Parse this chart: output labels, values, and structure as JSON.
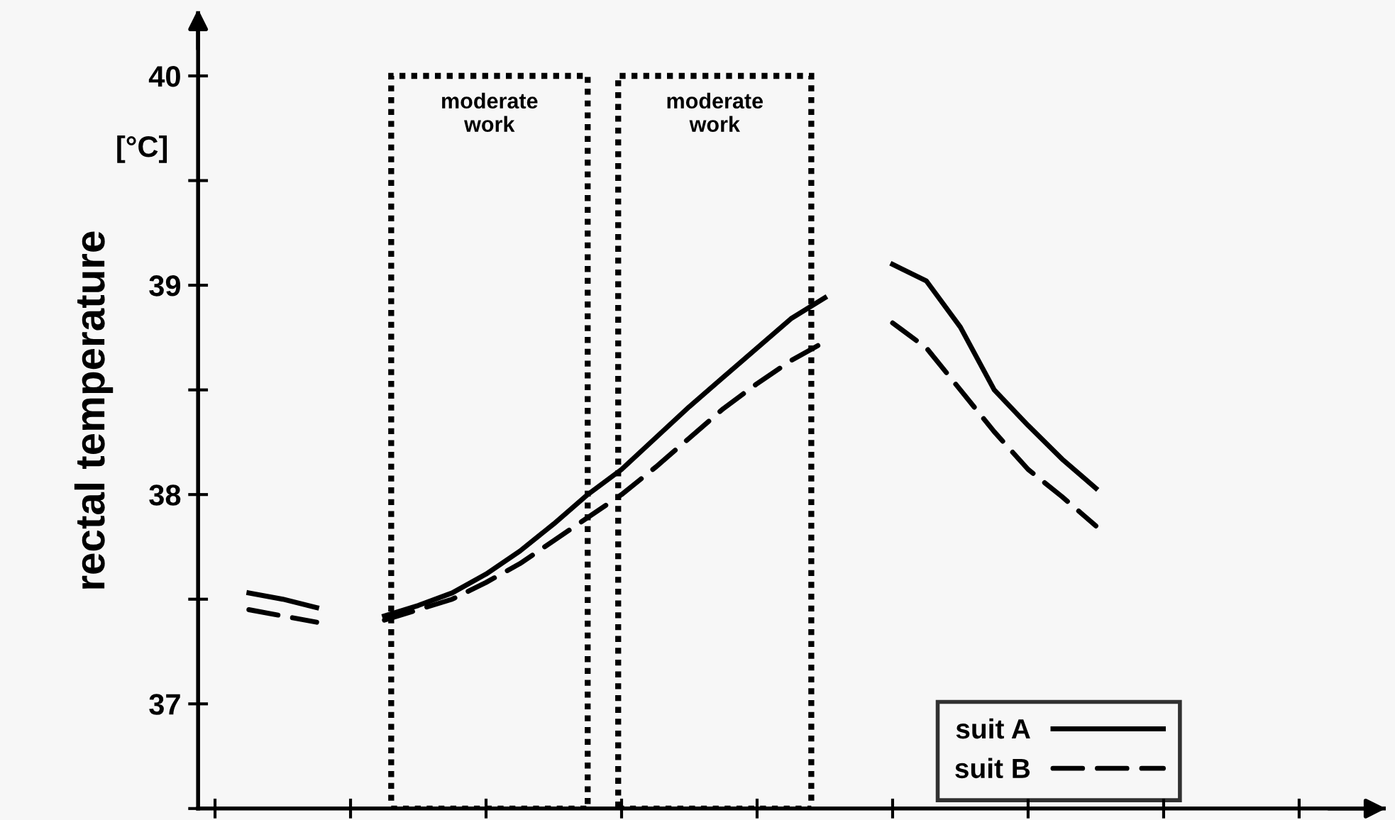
{
  "chart_data": {
    "type": "line",
    "ylabel": "rectal temperature",
    "annotations": [
      "[°C]",
      "moderate\nwork",
      "moderate\nwork"
    ],
    "categories": [
      null,
      null,
      null,
      null,
      null,
      null,
      null,
      null,
      null,
      null,
      null,
      null,
      null,
      null,
      null,
      null,
      null,
      null,
      null,
      null,
      null,
      null,
      null,
      null,
      null,
      null,
      null,
      null,
      null,
      null,
      null,
      null,
      null,
      null,
      null
    ],
    "ylim": [
      36.5,
      40.3
    ],
    "yticks": [
      {
        "value": 36.5,
        "label": null
      },
      37,
      {
        "value": 37.5,
        "label": null
      },
      38,
      {
        "value": 38.5,
        "label": null
      },
      39,
      {
        "value": 39.5,
        "label": null
      },
      40
    ],
    "tick_labels": "y",
    "grid": false,
    "legend": "bottom right",
    "series": [
      {
        "name": "suit A",
        "color": "#000000",
        "line_style": "solid",
        "values": [
          null,
          37.53,
          37.5,
          37.46,
          null,
          37.42,
          37.47,
          37.53,
          37.62,
          37.73,
          37.86,
          38.0,
          38.12,
          38.27,
          38.42,
          38.56,
          38.7,
          38.84,
          38.94,
          null,
          39.1,
          39.02,
          38.8,
          38.5,
          38.33,
          38.17,
          38.03,
          null,
          null,
          null,
          null,
          null,
          null,
          null,
          null
        ]
      },
      {
        "name": "suit B",
        "color": "#000000",
        "line_style": "dashed",
        "values": [
          null,
          37.45,
          37.42,
          37.39,
          null,
          37.4,
          37.45,
          37.5,
          37.58,
          37.67,
          37.78,
          37.89,
          38.0,
          38.13,
          38.27,
          38.41,
          38.53,
          38.64,
          38.73,
          null,
          38.82,
          38.7,
          38.5,
          38.3,
          38.12,
          37.99,
          37.85,
          null,
          null,
          null,
          null,
          null,
          null,
          null,
          null
        ]
      }
    ]
  }
}
